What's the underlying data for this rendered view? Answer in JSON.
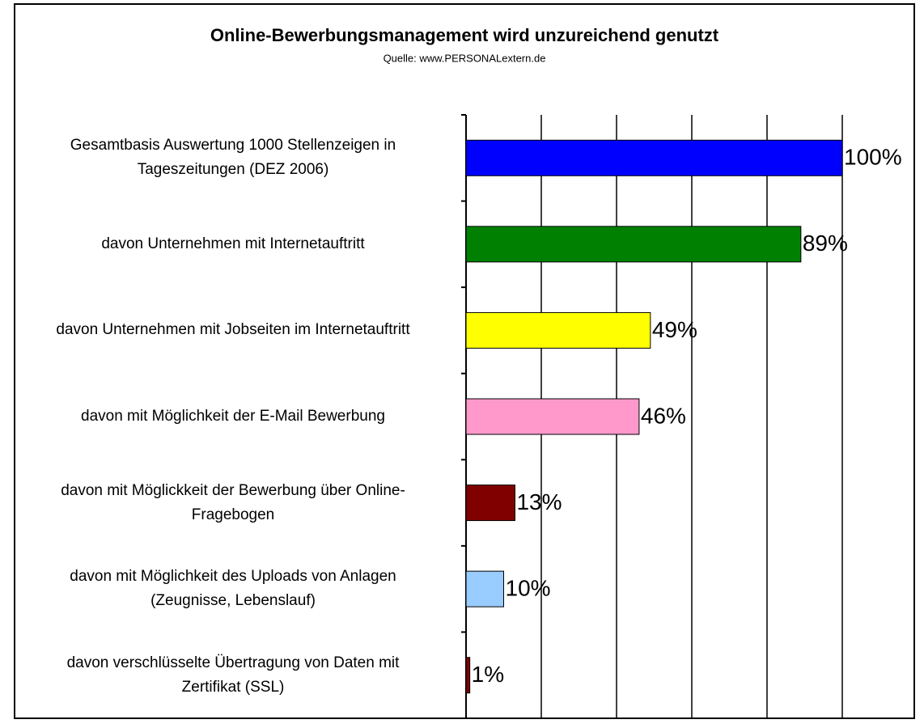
{
  "chart_data": {
    "type": "hbar",
    "title": "Online-Bewerbungsmanagement wird unzureichend genutzt",
    "subtitle": "Quelle: www.PERSONALextern.de",
    "categories": [
      "Gesamtbasis Auswertung 1000 Stellenzeigen in\nTageszeitungen (DEZ 2006)",
      "davon Unternehmen mit Internetauftritt",
      "davon Unternehmen mit Jobseiten im Internetauftritt",
      "davon mit Möglichkeit der E-Mail Bewerbung",
      "davon mit Möglickkeit der Bewerbung über Online-\nFragebogen",
      "davon mit Möglichkeit des Uploads von Anlagen\n(Zeugnisse, Lebenslauf)",
      "davon verschlüsselte Übertragung von Daten mit\nZertifikat (SSL)"
    ],
    "values": [
      100,
      89,
      49,
      46,
      13,
      10,
      1
    ],
    "value_labels": [
      "100%",
      "89%",
      "49%",
      "46%",
      "13%",
      "10%",
      "1%"
    ],
    "colors": [
      "#0000ff",
      "#008000",
      "#ffff00",
      "#ff99cc",
      "#800000",
      "#99ccff",
      "#800000"
    ],
    "xlim": [
      0,
      100
    ],
    "xticks": [
      0,
      20,
      40,
      60,
      80,
      100
    ],
    "grid": true
  }
}
